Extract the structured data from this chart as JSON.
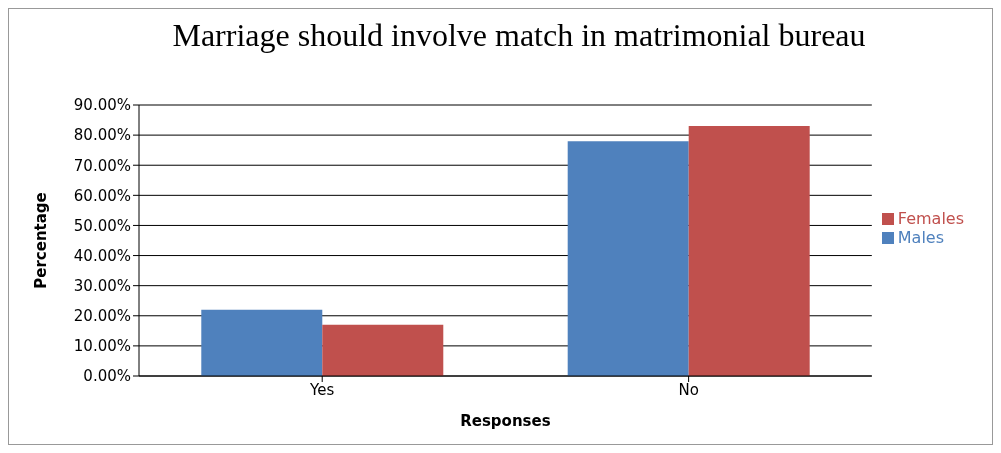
{
  "chart_data": {
    "type": "bar",
    "title": "Marriage should involve match in matrimonial bureau",
    "xlabel": "Responses",
    "ylabel": "Percentage",
    "categories": [
      "Yes",
      "No"
    ],
    "series": [
      {
        "name": "Males",
        "color": "#4f81bd",
        "values": [
          22,
          78
        ]
      },
      {
        "name": "Females",
        "color": "#c0504d",
        "values": [
          17,
          83
        ]
      }
    ],
    "ylim": [
      0,
      90
    ],
    "yticks": [
      {
        "value": 0,
        "label": "0.00%"
      },
      {
        "value": 10,
        "label": "10.00%"
      },
      {
        "value": 20,
        "label": "20.00%"
      },
      {
        "value": 30,
        "label": "30.00%"
      },
      {
        "value": 40,
        "label": "40.00%"
      },
      {
        "value": 50,
        "label": "50.00%"
      },
      {
        "value": 60,
        "label": "60.00%"
      },
      {
        "value": 70,
        "label": "70.00%"
      },
      {
        "value": 80,
        "label": "80.00%"
      },
      {
        "value": 90,
        "label": "90.00%"
      }
    ],
    "grid": "y",
    "legend": "right"
  }
}
